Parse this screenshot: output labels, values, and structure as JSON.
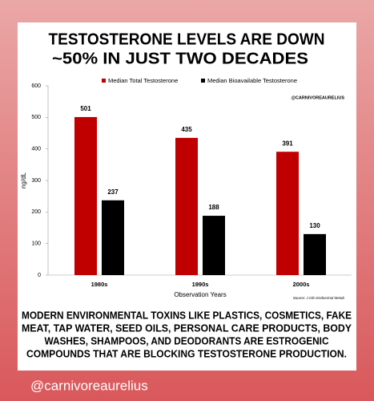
{
  "post": {
    "handle": "@carnivoreaurelius"
  },
  "chart_data": {
    "type": "bar",
    "title": [
      "TESTOSTERONE LEVELS ARE DOWN",
      "~50% IN JUST TWO DECADES"
    ],
    "watermark": "@CARNIVOREAURELIUS",
    "categories": [
      "1980s",
      "1990s",
      "2000s"
    ],
    "series": [
      {
        "name": "Median Total Testosterone",
        "color": "#c00000",
        "values": [
          501,
          435,
          391
        ]
      },
      {
        "name": "Median Bioavailable Testosterone",
        "color": "#000000",
        "values": [
          237,
          188,
          130
        ]
      }
    ],
    "ylim": [
      0,
      600
    ],
    "yticks": [
      0,
      100,
      200,
      300,
      400,
      500,
      600
    ],
    "grid": false,
    "y_label": "ng/dL",
    "x_label": "Observation Years",
    "source": "Source: J Clin Endocrinol Metab",
    "caption": [
      "MODERN ENVIRONMENTAL TOXINS LIKE PLASTICS, COSMETICS, FAKE",
      "MEAT, TAP WATER, SEED OILS, PERSONAL CARE PRODUCTS, BODY",
      "WASHES, SHAMPOOS, AND DEODORANTS ARE ESTROGENIC",
      "COMPOUNDS THAT ARE BLOCKING TESTOSTERONE PRODUCTION."
    ]
  }
}
